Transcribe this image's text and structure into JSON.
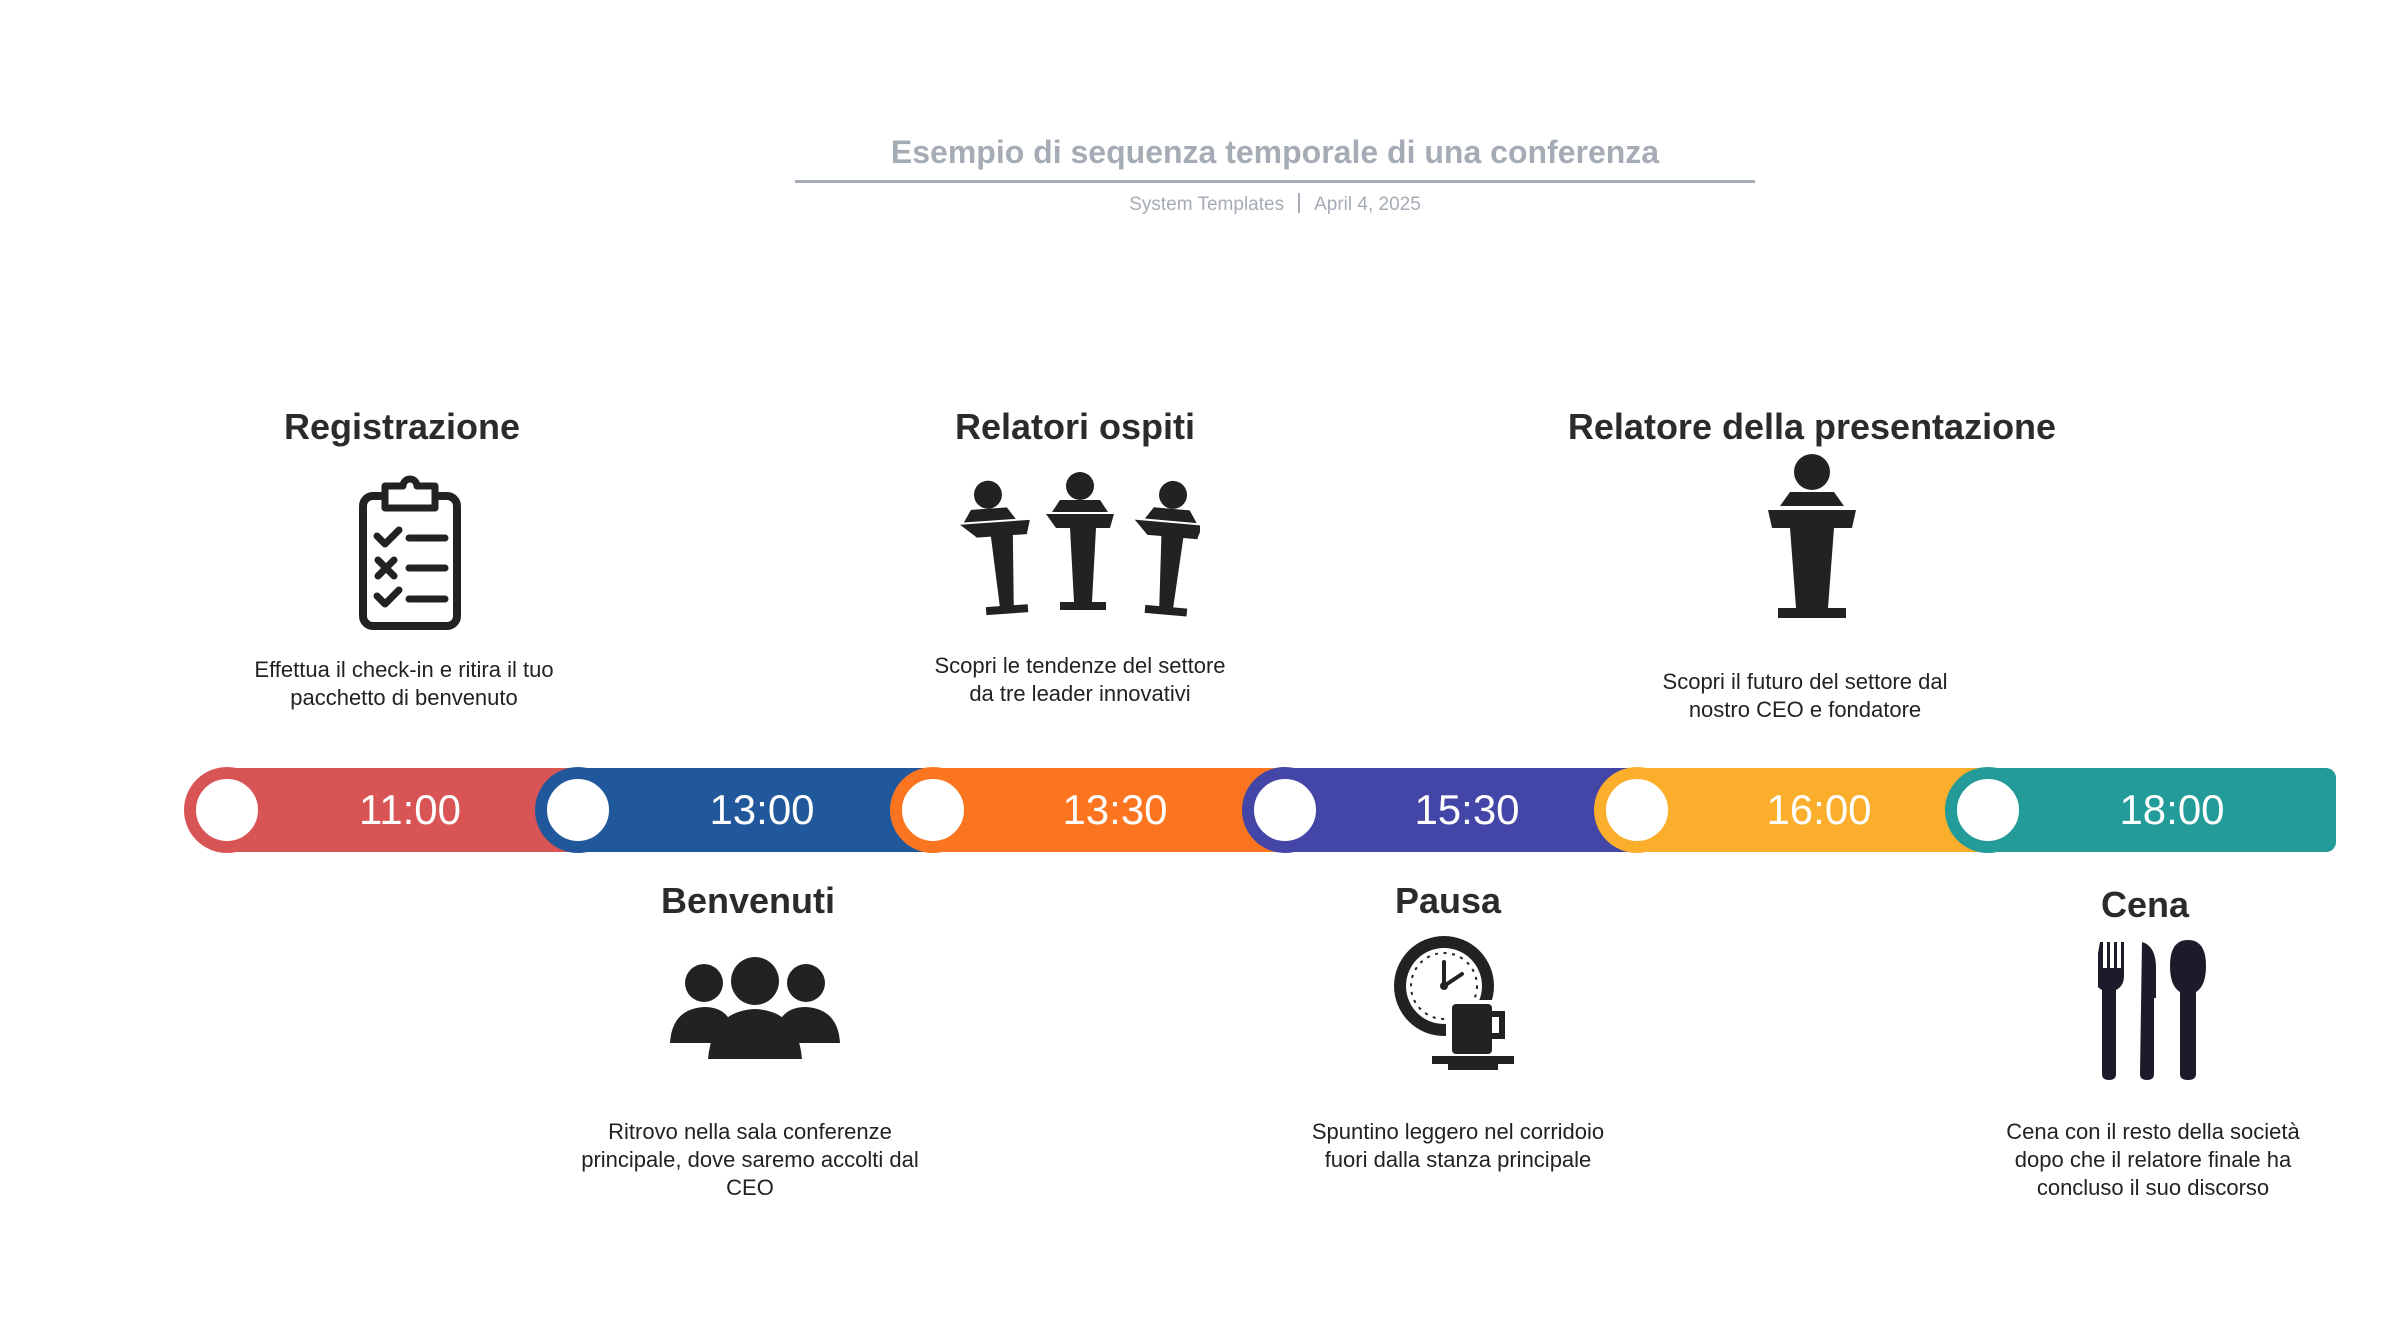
{
  "header": {
    "title": "Esempio di sequenza temporale di una conferenza",
    "author": "System Templates",
    "date": "April 4, 2025"
  },
  "timeline": {
    "times": [
      "11:00",
      "13:00",
      "13:30",
      "15:30",
      "16:00",
      "18:00"
    ],
    "colors": [
      "#d95555",
      "#21579b",
      "#fb7520",
      "#4346a6",
      "#fbae2c",
      "#239b98"
    ]
  },
  "events": [
    {
      "title": "Registrazione",
      "description": "Effettua il check-in e ritira il tuo pacchetto di benvenuto",
      "icon": "clipboard-checklist-icon"
    },
    {
      "title": "Benvenuti",
      "description": "Ritrovo nella sala conferenze principale, dove saremo accolti dal CEO",
      "icon": "group-people-icon"
    },
    {
      "title": "Relatori ospiti",
      "description": "Scopri le tendenze del settore da tre leader innovativi",
      "icon": "three-speakers-podium-icon"
    },
    {
      "title": "Pausa",
      "description": "Spuntino leggero nel corridoio fuori dalla stanza principale",
      "icon": "clock-coffee-icon"
    },
    {
      "title": "Relatore della presentazione",
      "description": "Scopri il futuro del settore dal nostro CEO e fondatore",
      "icon": "speaker-podium-icon"
    },
    {
      "title": "Cena",
      "description": "Cena con il resto della società dopo che il relatore finale ha concluso il suo discorso",
      "icon": "cutlery-icon"
    }
  ]
}
